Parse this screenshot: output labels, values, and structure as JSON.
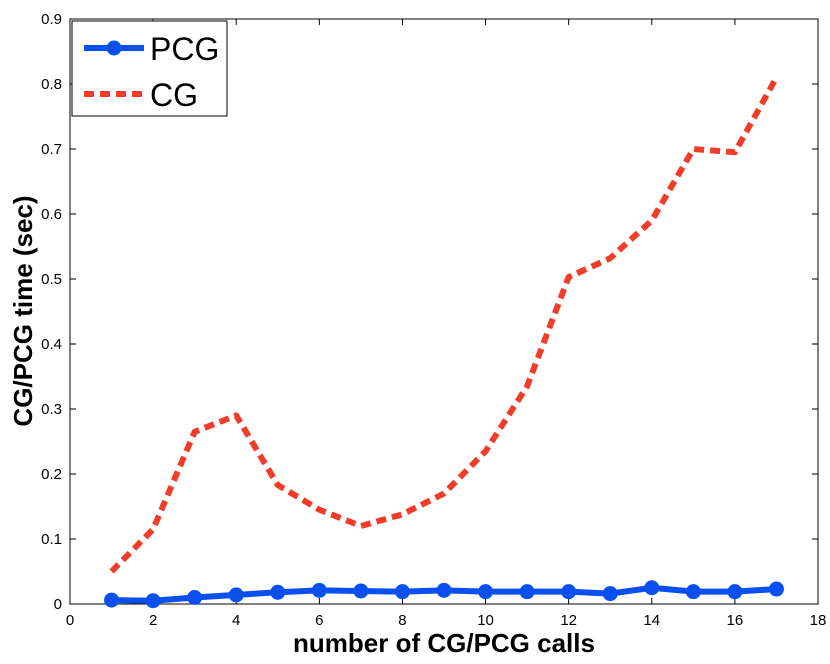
{
  "chart_data": {
    "type": "line",
    "title": "",
    "xlabel": "number of CG/PCG calls",
    "ylabel": "CG/PCG time (sec)",
    "xlim": [
      0,
      18
    ],
    "ylim": [
      0,
      0.9
    ],
    "x_ticks": [
      0,
      2,
      4,
      6,
      8,
      10,
      12,
      14,
      16,
      18
    ],
    "y_ticks": [
      0,
      0.1,
      0.2,
      0.3,
      0.4,
      0.5,
      0.6,
      0.7,
      0.8,
      0.9
    ],
    "x_tick_labels": [
      "0",
      "2",
      "4",
      "6",
      "8",
      "10",
      "12",
      "14",
      "16",
      "18"
    ],
    "y_tick_labels": [
      "0",
      "0.1",
      "0.2",
      "0.3",
      "0.4",
      "0.5",
      "0.6",
      "0.7",
      "0.8",
      "0.9"
    ],
    "grid": false,
    "legend_position": "top-left",
    "x": [
      1,
      2,
      3,
      4,
      5,
      6,
      7,
      8,
      9,
      10,
      11,
      12,
      13,
      14,
      15,
      16,
      17
    ],
    "series": [
      {
        "name": "PCG",
        "color": "#0a50f0",
        "style": "solid-with-circle-markers",
        "values": [
          0.006,
          0.005,
          0.01,
          0.014,
          0.018,
          0.021,
          0.02,
          0.019,
          0.021,
          0.019,
          0.019,
          0.019,
          0.016,
          0.025,
          0.019,
          0.019,
          0.023
        ]
      },
      {
        "name": "CG",
        "color": "#f03c28",
        "style": "dashed",
        "values": [
          0.05,
          0.115,
          0.265,
          0.29,
          0.183,
          0.145,
          0.12,
          0.138,
          0.17,
          0.235,
          0.335,
          0.503,
          0.532,
          0.59,
          0.7,
          0.695,
          0.81
        ]
      }
    ]
  }
}
